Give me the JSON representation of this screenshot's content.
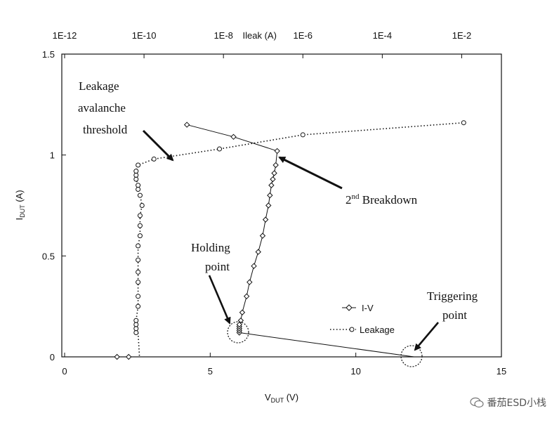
{
  "chart_data": {
    "type": "scatter",
    "bottom_axis": {
      "label_main": "V",
      "label_sub": "DUT",
      "label_unit": " (V)",
      "range": [
        0,
        15
      ],
      "ticks": [
        "0",
        "5",
        "10",
        "15"
      ]
    },
    "left_axis": {
      "label_main": "I",
      "label_sub": "DUT",
      "label_unit": " (A)",
      "range": [
        0,
        1.5
      ],
      "ticks": [
        "0",
        "0.5",
        "1",
        "1.5"
      ]
    },
    "top_axis": {
      "label": "Ileak (A)",
      "scale": "log",
      "range_exp": [
        -12,
        -1
      ],
      "ticks": [
        "1E-12",
        "1E-10",
        "1E-8",
        "1E-6",
        "1E-4",
        "1E-2"
      ]
    },
    "legend": [
      {
        "label": "I-V",
        "style": "solid-diamond"
      },
      {
        "label": "Leakage",
        "style": "dotted-circle"
      }
    ],
    "series": [
      {
        "name": "I-V",
        "x_axis": "bottom",
        "x": [
          1.8,
          2.2,
          6.0,
          6.0,
          6.0,
          6.0,
          6.0,
          6.05,
          6.1,
          6.25,
          6.35,
          6.5,
          6.65,
          6.8,
          6.9,
          7.0,
          7.05,
          7.1,
          7.15,
          7.2,
          7.25,
          7.3,
          5.8,
          4.2
        ],
        "y": [
          0.0,
          0.0,
          0.12,
          0.13,
          0.14,
          0.15,
          0.16,
          0.18,
          0.22,
          0.3,
          0.37,
          0.45,
          0.52,
          0.6,
          0.68,
          0.75,
          0.8,
          0.85,
          0.88,
          0.91,
          0.95,
          1.02,
          1.09,
          1.15
        ],
        "note_connector": [
          [
            6.0,
            0.12
          ],
          [
            12.0,
            0.0
          ]
        ]
      },
      {
        "name": "Leakage",
        "x_axis": "top",
        "x_log10": [
          -10.2,
          -10.2,
          -10.2,
          -10.2,
          -10.15,
          -10.15,
          -10.15,
          -10.15,
          -10.15,
          -10.15,
          -10.1,
          -10.1,
          -10.1,
          -10.05,
          -10.1,
          -10.15,
          -10.15,
          -10.2,
          -10.2,
          -10.2,
          -10.15,
          -9.75,
          -8.1,
          -6.0,
          -1.95
        ],
        "y": [
          0.12,
          0.14,
          0.16,
          0.18,
          0.25,
          0.3,
          0.37,
          0.42,
          0.48,
          0.55,
          0.6,
          0.65,
          0.7,
          0.75,
          0.8,
          0.83,
          0.85,
          0.88,
          0.9,
          0.92,
          0.95,
          0.98,
          1.03,
          1.1,
          1.16
        ]
      }
    ],
    "annotations": [
      {
        "id": "leakage-threshold",
        "lines": [
          "Leakage",
          "avalanche",
          "threshold"
        ]
      },
      {
        "id": "second-breakdown",
        "text": "2",
        "sup": "nd",
        "tail": " Breakdown"
      },
      {
        "id": "holding-point",
        "lines": [
          "Holding",
          "point"
        ]
      },
      {
        "id": "triggering-point",
        "lines": [
          "Triggering",
          "point"
        ]
      }
    ]
  },
  "watermark": {
    "text": "番茄ESD小栈"
  }
}
